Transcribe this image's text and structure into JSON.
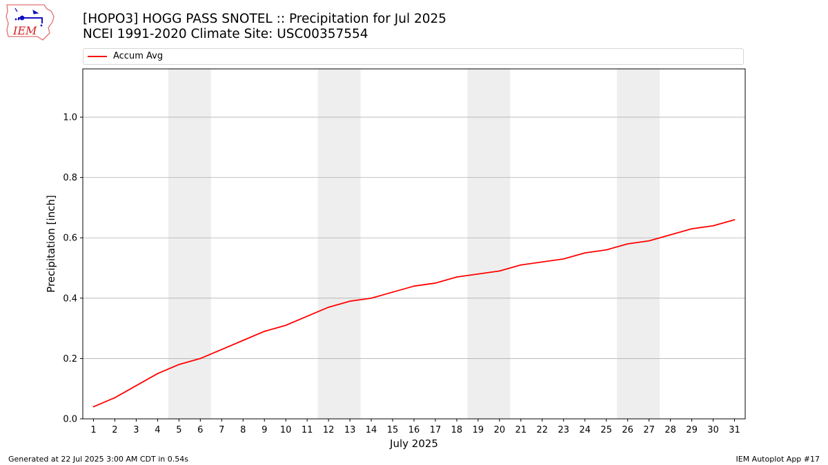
{
  "header": {
    "logo_text": "IEM",
    "title_line1": "[HOPO3] HOGG PASS SNOTEL :: Precipitation for Jul 2025",
    "title_line2": "NCEI 1991-2020 Climate Site: USC00357554"
  },
  "footer": {
    "left": "Generated at 22 Jul 2025 3:00 AM CDT in 0.54s",
    "right": "IEM Autoplot App #17"
  },
  "colors": {
    "series": "#ff0000",
    "weekend_band": "#eeeeee",
    "grid": "#b0b0b0"
  },
  "chart_data": {
    "type": "line",
    "title": "[HOPO3] HOGG PASS SNOTEL :: Precipitation for Jul 2025",
    "subtitle": "NCEI 1991-2020 Climate Site: USC00357554",
    "xlabel": "July 2025",
    "ylabel": "Precipitation [inch]",
    "xlim": [
      0.5,
      31.5
    ],
    "ylim": [
      0,
      1.16
    ],
    "yticks": [
      0.0,
      0.2,
      0.4,
      0.6,
      0.8,
      1.0
    ],
    "ytick_labels": [
      "0.0",
      "0.2",
      "0.4",
      "0.6",
      "0.8",
      "1.0"
    ],
    "xticks": [
      1,
      2,
      3,
      4,
      5,
      6,
      7,
      8,
      9,
      10,
      11,
      12,
      13,
      14,
      15,
      16,
      17,
      18,
      19,
      20,
      21,
      22,
      23,
      24,
      25,
      26,
      27,
      28,
      29,
      30,
      31
    ],
    "xtick_labels": [
      "1",
      "2",
      "3",
      "4",
      "5",
      "6",
      "7",
      "8",
      "9",
      "10",
      "11",
      "12",
      "13",
      "14",
      "15",
      "16",
      "17",
      "18",
      "19",
      "20",
      "21",
      "22",
      "23",
      "24",
      "25",
      "26",
      "27",
      "28",
      "29",
      "30",
      "31"
    ],
    "grid": "y",
    "legend_position": "top",
    "weekend_bands": [
      [
        5,
        6
      ],
      [
        12,
        13
      ],
      [
        19,
        20
      ],
      [
        26,
        27
      ]
    ],
    "series": [
      {
        "name": "Accum Avg",
        "x": [
          1,
          2,
          3,
          4,
          5,
          6,
          7,
          8,
          9,
          10,
          11,
          12,
          13,
          14,
          15,
          16,
          17,
          18,
          19,
          20,
          21,
          22,
          23,
          24,
          25,
          26,
          27,
          28,
          29,
          30,
          31
        ],
        "values": [
          0.04,
          0.07,
          0.11,
          0.15,
          0.18,
          0.2,
          0.23,
          0.26,
          0.29,
          0.31,
          0.34,
          0.37,
          0.39,
          0.4,
          0.42,
          0.44,
          0.45,
          0.47,
          0.48,
          0.49,
          0.51,
          0.52,
          0.53,
          0.55,
          0.56,
          0.58,
          0.59,
          0.61,
          0.63,
          0.64,
          0.66
        ]
      }
    ]
  }
}
